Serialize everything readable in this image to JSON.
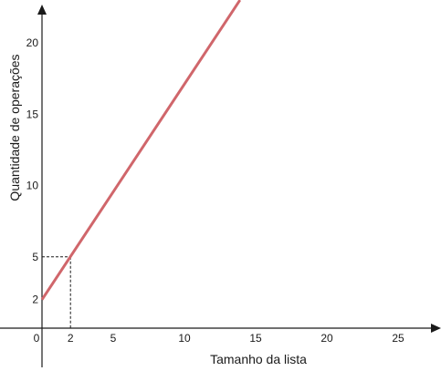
{
  "chart_data": {
    "type": "line",
    "xlabel": "Tamanho da lista",
    "ylabel": "Quantidade de operações",
    "x_ticks": [
      2,
      5,
      10,
      15,
      20,
      25
    ],
    "y_ticks": [
      2,
      5,
      10,
      15,
      20
    ],
    "origin_label": "0",
    "xlim": [
      0,
      28
    ],
    "ylim": [
      0,
      23
    ],
    "series": [
      {
        "x": [
          0,
          13.9
        ],
        "y": [
          2,
          23
        ],
        "color": "#d0666b"
      }
    ],
    "guide_point": {
      "x": 2,
      "y": 5
    },
    "grid": false,
    "legend": "none"
  }
}
